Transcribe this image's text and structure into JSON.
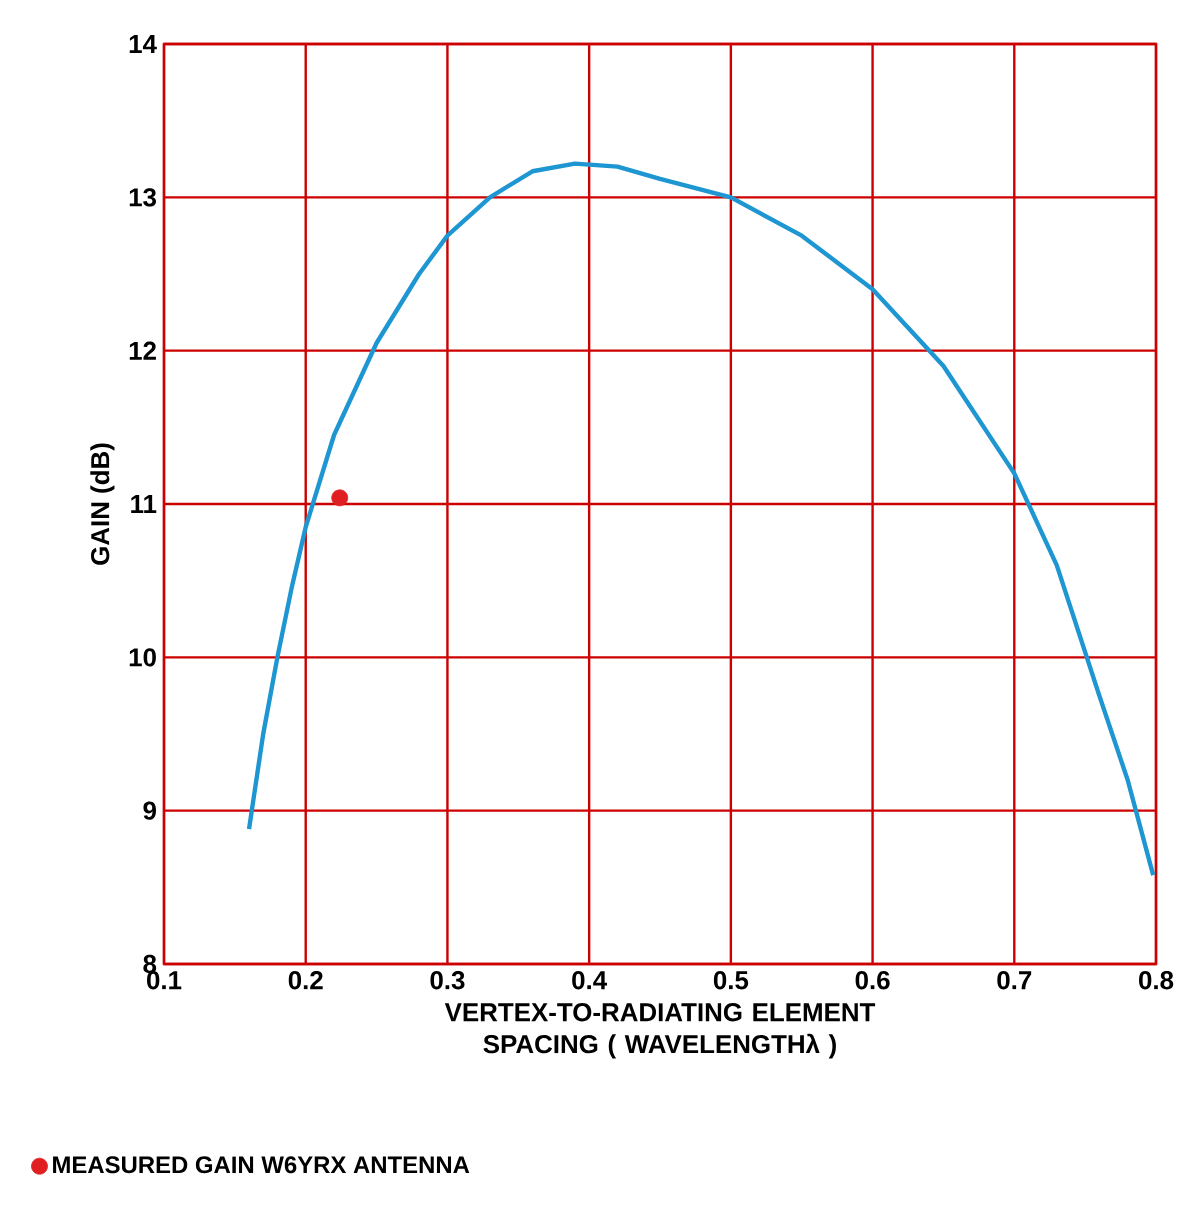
{
  "chart_data": {
    "type": "line",
    "xlabel": "VERTEX-TO-RADIATING ELEMENT SPACING ( WAVELENGTHλ )",
    "ylabel": "GAIN (dB)",
    "xlim": [
      0.1,
      0.8
    ],
    "ylim": [
      8,
      14
    ],
    "xticks": [
      0.1,
      0.2,
      0.3,
      0.4,
      0.5,
      0.6,
      0.7,
      0.8
    ],
    "yticks": [
      8,
      9,
      10,
      11,
      12,
      13,
      14
    ],
    "grid": true,
    "legend": "bottom left",
    "series": [
      {
        "color": "#1e96d2",
        "marker": "none",
        "x": [
          0.16,
          0.17,
          0.18,
          0.19,
          0.2,
          0.22,
          0.25,
          0.28,
          0.3,
          0.33,
          0.36,
          0.39,
          0.42,
          0.45,
          0.5,
          0.55,
          0.6,
          0.65,
          0.7,
          0.73,
          0.76,
          0.78,
          0.798
        ],
        "values": [
          8.88,
          9.5,
          10.0,
          10.45,
          10.85,
          11.45,
          12.05,
          12.5,
          12.75,
          13.0,
          13.17,
          13.22,
          13.2,
          13.12,
          13.0,
          12.75,
          12.4,
          11.9,
          11.2,
          10.6,
          9.75,
          9.2,
          8.58
        ]
      },
      {
        "type": "scatter",
        "name": "MEASURED GAIN W6YRX ANTENNA",
        "color": "#e02020",
        "marker": "circle",
        "x": [
          0.224
        ],
        "values": [
          11.04
        ]
      }
    ]
  }
}
